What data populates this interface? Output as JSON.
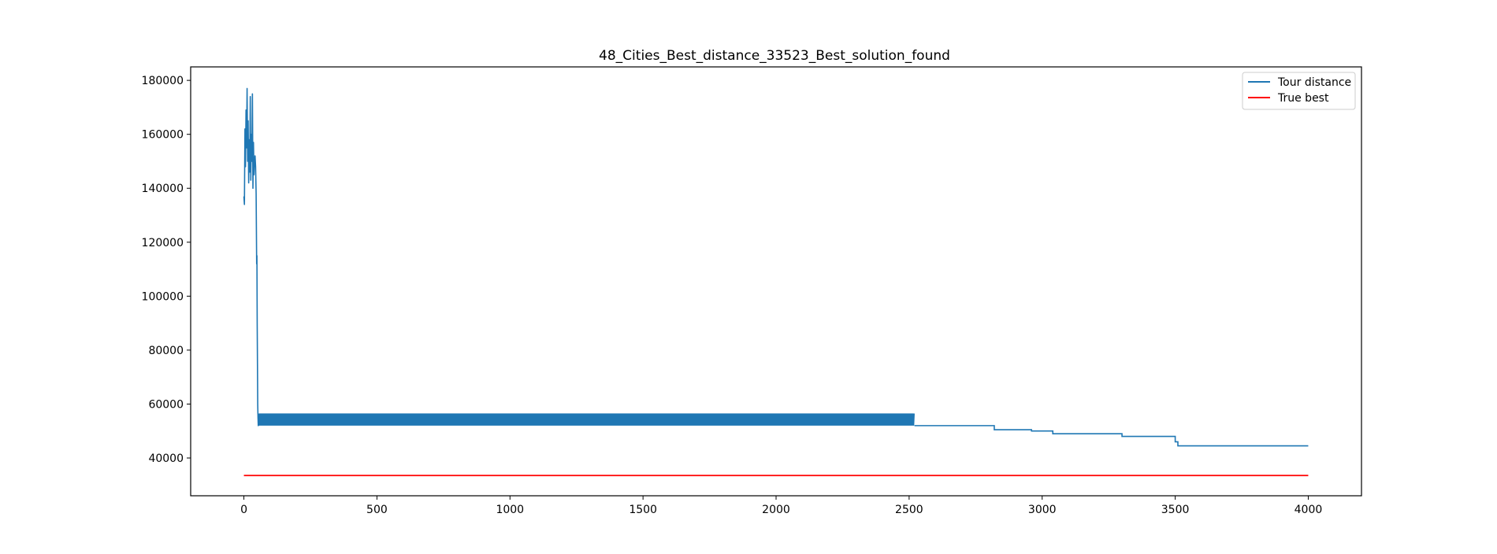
{
  "chart_data": {
    "type": "line",
    "title": "48_Cities_Best_distance_33523_Best_solution_found",
    "xlabel": "",
    "ylabel": "",
    "xlim": [
      -200,
      4200
    ],
    "ylim": [
      26000,
      185000
    ],
    "xticks": [
      0,
      500,
      1000,
      1500,
      2000,
      2500,
      3000,
      3500,
      4000
    ],
    "yticks": [
      40000,
      60000,
      80000,
      100000,
      120000,
      140000,
      160000,
      180000
    ],
    "xtick_labels": [
      "0",
      "500",
      "1000",
      "1500",
      "2000",
      "2500",
      "3000",
      "3500",
      "4000"
    ],
    "ytick_labels": [
      "40000",
      "60000",
      "80000",
      "100000",
      "120000",
      "140000",
      "160000",
      "180000"
    ],
    "grid": false,
    "legend_position": "top-right",
    "series": [
      {
        "name": "Tour distance",
        "color": "#1f77b4",
        "initial_phase": {
          "x": [
            0,
            2,
            4,
            6,
            8,
            10,
            12,
            14,
            16,
            18,
            20,
            22,
            24,
            26,
            28,
            30,
            32,
            34,
            36,
            38,
            40,
            42,
            44,
            46,
            48,
            49,
            50,
            51,
            52,
            53,
            54,
            55
          ],
          "y": [
            137000,
            134000,
            162000,
            148000,
            169000,
            155000,
            177000,
            150000,
            165000,
            142000,
            158000,
            146000,
            174000,
            143000,
            160000,
            150000,
            175000,
            140000,
            157000,
            145000,
            150000,
            152000,
            148000,
            138000,
            112000,
            115000,
            90000,
            75000,
            60000,
            55000,
            52000,
            56000
          ]
        },
        "oscillation_phase": {
          "x_range": [
            55,
            2520
          ],
          "y_low": 52000,
          "y_high": 56500
        },
        "step_phase": {
          "x": [
            2520,
            2820,
            2820,
            2960,
            2960,
            3040,
            3040,
            3300,
            3300,
            3500,
            3500,
            3510,
            3510,
            4000
          ],
          "y": [
            52000,
            52000,
            50500,
            50500,
            50000,
            50000,
            49000,
            49000,
            48000,
            48000,
            46000,
            46000,
            44500,
            44500
          ]
        }
      },
      {
        "name": "True best",
        "color": "#ff0000",
        "x": [
          0,
          4000
        ],
        "y": [
          33523,
          33523
        ]
      }
    ]
  }
}
